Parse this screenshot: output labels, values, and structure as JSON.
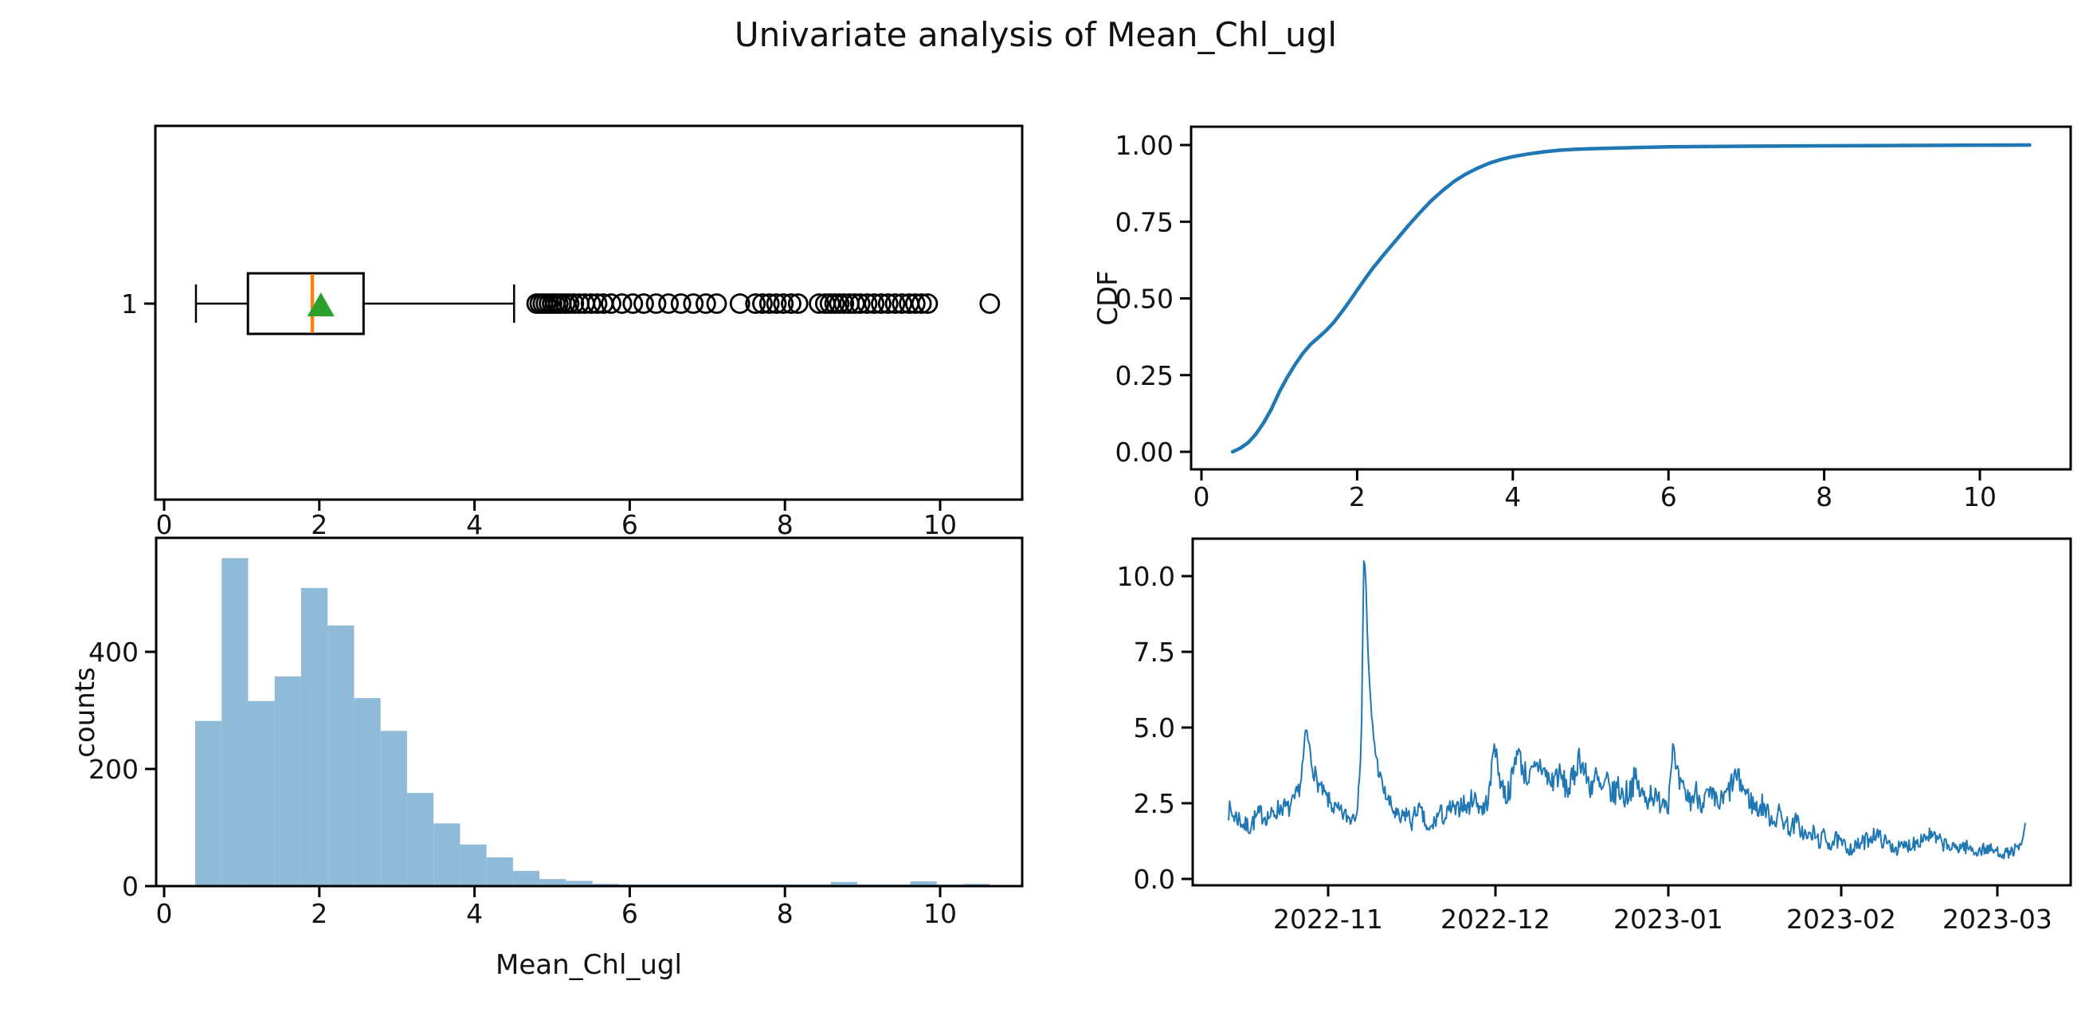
{
  "title": "Univariate analysis of Mean_Chl_ugl",
  "colors": {
    "series_blue": "#1f77b4",
    "hist_fill_blue": "#8fbbd9",
    "median_orange": "#ff7f0e",
    "mean_green": "#2ca02c",
    "axis_black": "#000000",
    "text_black": "#111111"
  },
  "chart_data": [
    {
      "id": "boxplot",
      "type": "boxplot",
      "position": "top-left",
      "orientation": "horizontal",
      "ytick_labels": [
        "1"
      ],
      "xticks": [
        0,
        2,
        4,
        6,
        8,
        10
      ],
      "xlim": [
        -0.12,
        11.17
      ],
      "stats": {
        "min": 0.41,
        "q1": 1.08,
        "median": 1.91,
        "mean": 2.02,
        "q3": 2.57,
        "whisker_high": 4.51
      },
      "outliers": [
        4.8,
        4.84,
        4.88,
        4.92,
        4.96,
        5.0,
        5.04,
        5.08,
        5.12,
        5.17,
        5.22,
        5.28,
        5.35,
        5.42,
        5.5,
        5.58,
        5.66,
        5.76,
        5.9,
        6.04,
        6.18,
        6.34,
        6.5,
        6.66,
        6.82,
        6.98,
        7.12,
        7.42,
        7.62,
        7.71,
        7.8,
        7.89,
        7.98,
        8.08,
        8.17,
        8.44,
        8.52,
        8.58,
        8.64,
        8.7,
        8.76,
        8.83,
        8.9,
        8.97,
        9.06,
        9.15,
        9.24,
        9.33,
        9.42,
        9.51,
        9.6,
        9.68,
        9.76,
        9.84,
        10.64
      ]
    },
    {
      "id": "cdf",
      "type": "line",
      "position": "top-right",
      "ylabel": "CDF",
      "ytick_labels": [
        "0.00",
        "0.25",
        "0.50",
        "0.75",
        "1.00"
      ],
      "ytick_values": [
        0,
        0.25,
        0.5,
        0.75,
        1.0
      ],
      "xticks": [
        0,
        2,
        4,
        6,
        8,
        10
      ],
      "points": [
        [
          0.4,
          0.0
        ],
        [
          0.5,
          0.012
        ],
        [
          0.6,
          0.03
        ],
        [
          0.7,
          0.058
        ],
        [
          0.8,
          0.095
        ],
        [
          0.9,
          0.14
        ],
        [
          1.0,
          0.195
        ],
        [
          1.1,
          0.242
        ],
        [
          1.2,
          0.283
        ],
        [
          1.3,
          0.32
        ],
        [
          1.4,
          0.35
        ],
        [
          1.5,
          0.372
        ],
        [
          1.6,
          0.395
        ],
        [
          1.7,
          0.422
        ],
        [
          1.8,
          0.455
        ],
        [
          1.9,
          0.49
        ],
        [
          2.0,
          0.527
        ],
        [
          2.1,
          0.563
        ],
        [
          2.2,
          0.598
        ],
        [
          2.35,
          0.645
        ],
        [
          2.5,
          0.69
        ],
        [
          2.65,
          0.735
        ],
        [
          2.8,
          0.778
        ],
        [
          2.95,
          0.818
        ],
        [
          3.1,
          0.852
        ],
        [
          3.25,
          0.882
        ],
        [
          3.4,
          0.906
        ],
        [
          3.55,
          0.925
        ],
        [
          3.7,
          0.941
        ],
        [
          3.85,
          0.953
        ],
        [
          4.0,
          0.962
        ],
        [
          4.2,
          0.971
        ],
        [
          4.4,
          0.978
        ],
        [
          4.6,
          0.983
        ],
        [
          4.8,
          0.986
        ],
        [
          5.0,
          0.988
        ],
        [
          5.3,
          0.99
        ],
        [
          5.6,
          0.992
        ],
        [
          6.0,
          0.994
        ],
        [
          6.5,
          0.995
        ],
        [
          7.0,
          0.996
        ],
        [
          7.5,
          0.997
        ],
        [
          8.0,
          0.9975
        ],
        [
          8.6,
          0.998
        ],
        [
          9.2,
          0.9987
        ],
        [
          9.8,
          0.9993
        ],
        [
          10.3,
          0.9997
        ],
        [
          10.64,
          1.0
        ]
      ]
    },
    {
      "id": "histogram",
      "type": "bar",
      "position": "bottom-left",
      "ylabel": "counts",
      "xlabel": "Mean_Chl_ugl",
      "yticks": [
        0,
        200,
        400
      ],
      "xticks": [
        0,
        2,
        4,
        6,
        8,
        10
      ],
      "ylim": [
        0,
        594
      ],
      "bin_start": 0.4,
      "bin_width": 0.3413,
      "counts": [
        282,
        560,
        316,
        358,
        509,
        445,
        321,
        265,
        159,
        107,
        71,
        49,
        26,
        12,
        9,
        4,
        3,
        3,
        3,
        3,
        3,
        3,
        3,
        3,
        7,
        3,
        3,
        8,
        3,
        4
      ]
    },
    {
      "id": "timeseries",
      "type": "line",
      "position": "bottom-right",
      "ytick_labels": [
        "0.0",
        "2.5",
        "5.0",
        "7.5",
        "10.0"
      ],
      "ytick_values": [
        0,
        2.5,
        5.0,
        7.5,
        10.0
      ],
      "xticks": [
        {
          "label": "2022-11",
          "day": 18
        },
        {
          "label": "2022-12",
          "day": 48
        },
        {
          "label": "2023-01",
          "day": 79
        },
        {
          "label": "2023-02",
          "day": 110
        },
        {
          "label": "2023-03",
          "day": 138
        }
      ],
      "anchors": [
        [
          0,
          2.3,
          0.35
        ],
        [
          1,
          2.1,
          0.35
        ],
        [
          2,
          2.0,
          0.35
        ],
        [
          3,
          1.75,
          0.3
        ],
        [
          4,
          1.75,
          0.35
        ],
        [
          5,
          2.0,
          0.35
        ],
        [
          6,
          2.15,
          0.35
        ],
        [
          7,
          2.05,
          0.3
        ],
        [
          8,
          2.1,
          0.3
        ],
        [
          9,
          2.3,
          0.35
        ],
        [
          10,
          2.4,
          0.3
        ],
        [
          11,
          2.3,
          0.3
        ],
        [
          12,
          2.6,
          0.3
        ],
        [
          13,
          3.1,
          0.3
        ],
        [
          13.7,
          4.2,
          0.4
        ],
        [
          14,
          4.9,
          0.15
        ],
        [
          14.4,
          4.6,
          0.3
        ],
        [
          15,
          3.9,
          0.35
        ],
        [
          16,
          3.2,
          0.3
        ],
        [
          17,
          2.9,
          0.25
        ],
        [
          18,
          2.6,
          0.3
        ],
        [
          19,
          2.35,
          0.3
        ],
        [
          20,
          2.2,
          0.3
        ],
        [
          21,
          2.1,
          0.3
        ],
        [
          22,
          2.0,
          0.3
        ],
        [
          23,
          2.3,
          0.35
        ],
        [
          23.6,
          3.0,
          0.3
        ],
        [
          24,
          5.5,
          0.5
        ],
        [
          24.4,
          10.5,
          0.3
        ],
        [
          24.8,
          9.8,
          0.6
        ],
        [
          25.2,
          7.0,
          0.5
        ],
        [
          25.6,
          5.8,
          0.3
        ],
        [
          26,
          4.9,
          0.3
        ],
        [
          26.5,
          4.2,
          0.25
        ],
        [
          27,
          3.6,
          0.25
        ],
        [
          28,
          2.9,
          0.25
        ],
        [
          29,
          2.5,
          0.3
        ],
        [
          30,
          2.15,
          0.3
        ],
        [
          31,
          1.9,
          0.3
        ],
        [
          32,
          2.2,
          0.35
        ],
        [
          33,
          1.85,
          0.3
        ],
        [
          34,
          2.35,
          0.3
        ],
        [
          35,
          2.05,
          0.3
        ],
        [
          36,
          1.5,
          0.25
        ],
        [
          37,
          1.85,
          0.3
        ],
        [
          38,
          2.2,
          0.35
        ],
        [
          39,
          2.0,
          0.3
        ],
        [
          40,
          2.35,
          0.35
        ],
        [
          41,
          2.2,
          0.3
        ],
        [
          42,
          2.55,
          0.35
        ],
        [
          43,
          2.3,
          0.35
        ],
        [
          44,
          2.75,
          0.35
        ],
        [
          45,
          2.45,
          0.35
        ],
        [
          46,
          2.3,
          0.35
        ],
        [
          47,
          2.9,
          0.4
        ],
        [
          47.8,
          4.7,
          0.3
        ],
        [
          48.2,
          3.9,
          0.4
        ],
        [
          49,
          3.2,
          0.4
        ],
        [
          50,
          2.7,
          0.4
        ],
        [
          51,
          3.3,
          0.45
        ],
        [
          52,
          4.4,
          0.35
        ],
        [
          52.5,
          3.9,
          0.4
        ],
        [
          53,
          3.6,
          0.45
        ],
        [
          54,
          3.3,
          0.4
        ],
        [
          55,
          3.55,
          0.45
        ],
        [
          56,
          3.8,
          0.45
        ],
        [
          57,
          3.45,
          0.45
        ],
        [
          58,
          3.15,
          0.45
        ],
        [
          59,
          3.5,
          0.5
        ],
        [
          60,
          3.25,
          0.45
        ],
        [
          61,
          2.95,
          0.45
        ],
        [
          62,
          3.3,
          0.5
        ],
        [
          63,
          4.1,
          0.4
        ],
        [
          64,
          3.5,
          0.45
        ],
        [
          65,
          3.05,
          0.45
        ],
        [
          66,
          3.35,
          0.5
        ],
        [
          67,
          2.85,
          0.45
        ],
        [
          68,
          3.15,
          0.5
        ],
        [
          69,
          2.75,
          0.45
        ],
        [
          70,
          3.05,
          0.5
        ],
        [
          71,
          2.7,
          0.45
        ],
        [
          72,
          2.95,
          0.5
        ],
        [
          73,
          3.3,
          0.45
        ],
        [
          74,
          2.85,
          0.45
        ],
        [
          75,
          2.6,
          0.45
        ],
        [
          76,
          2.9,
          0.45
        ],
        [
          77,
          2.5,
          0.4
        ],
        [
          78,
          2.7,
          0.45
        ],
        [
          79,
          2.55,
          0.4
        ],
        [
          79.8,
          4.5,
          0.3
        ],
        [
          80.3,
          3.6,
          0.4
        ],
        [
          81,
          3.1,
          0.4
        ],
        [
          82,
          2.8,
          0.4
        ],
        [
          83,
          2.6,
          0.4
        ],
        [
          84,
          2.85,
          0.45
        ],
        [
          85,
          2.55,
          0.4
        ],
        [
          86,
          2.75,
          0.4
        ],
        [
          87,
          2.6,
          0.45
        ],
        [
          88,
          2.45,
          0.4
        ],
        [
          89,
          2.65,
          0.4
        ],
        [
          90,
          2.95,
          0.45
        ],
        [
          91,
          3.4,
          0.4
        ],
        [
          92,
          3.15,
          0.4
        ],
        [
          93,
          2.8,
          0.4
        ],
        [
          94,
          2.5,
          0.4
        ],
        [
          95,
          2.3,
          0.35
        ],
        [
          96,
          2.45,
          0.4
        ],
        [
          97,
          2.1,
          0.35
        ],
        [
          98,
          1.95,
          0.35
        ],
        [
          99,
          2.15,
          0.4
        ],
        [
          100,
          1.85,
          0.35
        ],
        [
          101,
          1.65,
          0.3
        ],
        [
          102,
          1.9,
          0.35
        ],
        [
          103,
          1.55,
          0.3
        ],
        [
          104,
          1.35,
          0.3
        ],
        [
          105,
          1.5,
          0.3
        ],
        [
          106,
          1.25,
          0.28
        ],
        [
          107,
          1.4,
          0.3
        ],
        [
          108,
          1.15,
          0.28
        ],
        [
          109,
          1.3,
          0.28
        ],
        [
          110,
          1.15,
          0.25
        ],
        [
          111,
          1.05,
          0.25
        ],
        [
          112,
          1.0,
          0.25
        ],
        [
          113,
          1.1,
          0.25
        ],
        [
          114,
          1.2,
          0.28
        ],
        [
          115,
          1.35,
          0.28
        ],
        [
          116,
          1.5,
          0.28
        ],
        [
          117,
          1.35,
          0.28
        ],
        [
          118,
          1.2,
          0.25
        ],
        [
          119,
          1.1,
          0.25
        ],
        [
          120,
          1.0,
          0.22
        ],
        [
          121,
          1.05,
          0.25
        ],
        [
          122,
          1.1,
          0.25
        ],
        [
          123,
          1.2,
          0.28
        ],
        [
          124,
          1.3,
          0.28
        ],
        [
          125,
          1.4,
          0.28
        ],
        [
          126,
          1.45,
          0.28
        ],
        [
          127,
          1.3,
          0.28
        ],
        [
          128,
          1.2,
          0.25
        ],
        [
          129,
          1.1,
          0.25
        ],
        [
          130,
          1.0,
          0.22
        ],
        [
          131,
          1.05,
          0.22
        ],
        [
          132,
          1.1,
          0.25
        ],
        [
          133,
          1.0,
          0.22
        ],
        [
          134,
          0.9,
          0.2
        ],
        [
          135,
          0.95,
          0.22
        ],
        [
          136,
          1.0,
          0.22
        ],
        [
          137,
          0.95,
          0.2
        ],
        [
          138,
          0.9,
          0.2
        ],
        [
          139,
          0.85,
          0.18
        ],
        [
          140,
          0.85,
          0.18
        ],
        [
          141,
          0.95,
          0.2
        ],
        [
          142,
          1.0,
          0.2
        ],
        [
          142.6,
          1.3,
          0.15
        ],
        [
          143,
          1.85,
          0.1
        ]
      ]
    }
  ]
}
